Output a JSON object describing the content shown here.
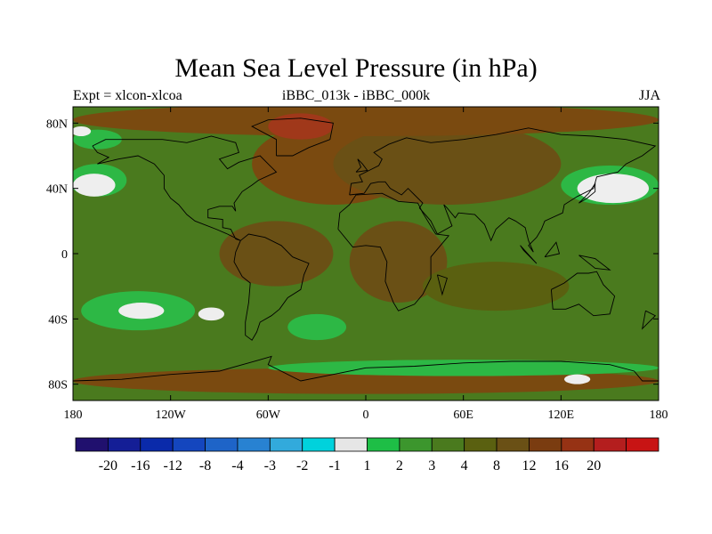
{
  "title": "Mean Sea Level Pressure (in hPa)",
  "subtitle_left": "Expt = xlcon-xlcoa",
  "subtitle_center": "iBBC_013k - iBBC_000k",
  "subtitle_right": "JJA",
  "map": {
    "projection": "cylindrical-equidistant",
    "lon_range": [
      -180,
      180
    ],
    "lat_range": [
      -90,
      90
    ],
    "lat_ticks": [
      {
        "value": 80,
        "label": "80N"
      },
      {
        "value": 40,
        "label": "40N"
      },
      {
        "value": 0,
        "label": "0"
      },
      {
        "value": -40,
        "label": "40S"
      },
      {
        "value": -80,
        "label": "80S"
      }
    ],
    "lon_ticks": [
      {
        "value": -180,
        "label": "180"
      },
      {
        "value": -120,
        "label": "120W"
      },
      {
        "value": -60,
        "label": "60W"
      },
      {
        "value": 0,
        "label": "0"
      },
      {
        "value": 60,
        "label": "60E"
      },
      {
        "value": 120,
        "label": "120E"
      },
      {
        "value": 180,
        "label": "180"
      }
    ],
    "background_color": "#4a7a1e",
    "regions": [
      {
        "name": "north-atlantic-high",
        "color": "#7a4a10",
        "lon": -20,
        "lat": 55,
        "rx": 50,
        "ry": 25
      },
      {
        "name": "eurasia-high",
        "color": "#6a5015",
        "lon": 50,
        "lat": 55,
        "rx": 70,
        "ry": 25
      },
      {
        "name": "arctic-high",
        "color": "#7a4a10",
        "lon": 0,
        "lat": 82,
        "rx": 180,
        "ry": 10
      },
      {
        "name": "greenland-peak",
        "color": "#a0381a",
        "lon": -40,
        "lat": 78,
        "rx": 20,
        "ry": 8
      },
      {
        "name": "south-america-belt",
        "color": "#6a5015",
        "lon": -55,
        "lat": 0,
        "rx": 35,
        "ry": 20
      },
      {
        "name": "africa-belt",
        "color": "#6a5015",
        "lon": 20,
        "lat": -5,
        "rx": 30,
        "ry": 25
      },
      {
        "name": "indian-ocean-belt",
        "color": "#5a6010",
        "lon": 80,
        "lat": -20,
        "rx": 45,
        "ry": 15
      },
      {
        "name": "southern-ocean-high",
        "color": "#7a4a10",
        "lon": 0,
        "lat": -78,
        "rx": 180,
        "ry": 8
      },
      {
        "name": "south-pacific-low",
        "color": "#2db845",
        "lon": -140,
        "lat": -35,
        "rx": 35,
        "ry": 12
      },
      {
        "name": "south-atlantic-low",
        "color": "#2db845",
        "lon": -30,
        "lat": -45,
        "rx": 18,
        "ry": 8
      },
      {
        "name": "north-pacific-low-west",
        "color": "#2db845",
        "lon": -165,
        "lat": 45,
        "rx": 18,
        "ry": 10
      },
      {
        "name": "north-pacific-low-east",
        "color": "#2db845",
        "lon": 150,
        "lat": 42,
        "rx": 30,
        "ry": 12
      },
      {
        "name": "southern-ocean-low",
        "color": "#2db845",
        "lon": 60,
        "lat": -70,
        "rx": 120,
        "ry": 5
      },
      {
        "name": "arctic-low-west",
        "color": "#2db845",
        "lon": -165,
        "lat": 70,
        "rx": 15,
        "ry": 6
      }
    ],
    "white_patches": [
      {
        "lon": -167,
        "lat": 42,
        "rx": 13,
        "ry": 7
      },
      {
        "lon": 152,
        "lat": 40,
        "rx": 22,
        "ry": 9
      },
      {
        "lon": -138,
        "lat": -35,
        "rx": 14,
        "ry": 5
      },
      {
        "lon": -95,
        "lat": -37,
        "rx": 8,
        "ry": 4
      },
      {
        "lon": -175,
        "lat": 75,
        "rx": 6,
        "ry": 3
      },
      {
        "lon": 130,
        "lat": -77,
        "rx": 8,
        "ry": 3
      }
    ]
  },
  "colorbar": {
    "colors": [
      "#20106e",
      "#141e96",
      "#0a2aaa",
      "#1446be",
      "#1e64c8",
      "#2882d2",
      "#32aadc",
      "#00d2dc",
      "#e6e6e6",
      "#1ebe46",
      "#3c962d",
      "#4a7a1e",
      "#5a6010",
      "#6a5015",
      "#7a3c10",
      "#963214",
      "#b41e1e",
      "#c81414"
    ],
    "labels": [
      "-20",
      "-16",
      "-12",
      "-8",
      "-4",
      "-3",
      "-2",
      "-1",
      "1",
      "2",
      "3",
      "4",
      "8",
      "12",
      "16",
      "20"
    ]
  }
}
